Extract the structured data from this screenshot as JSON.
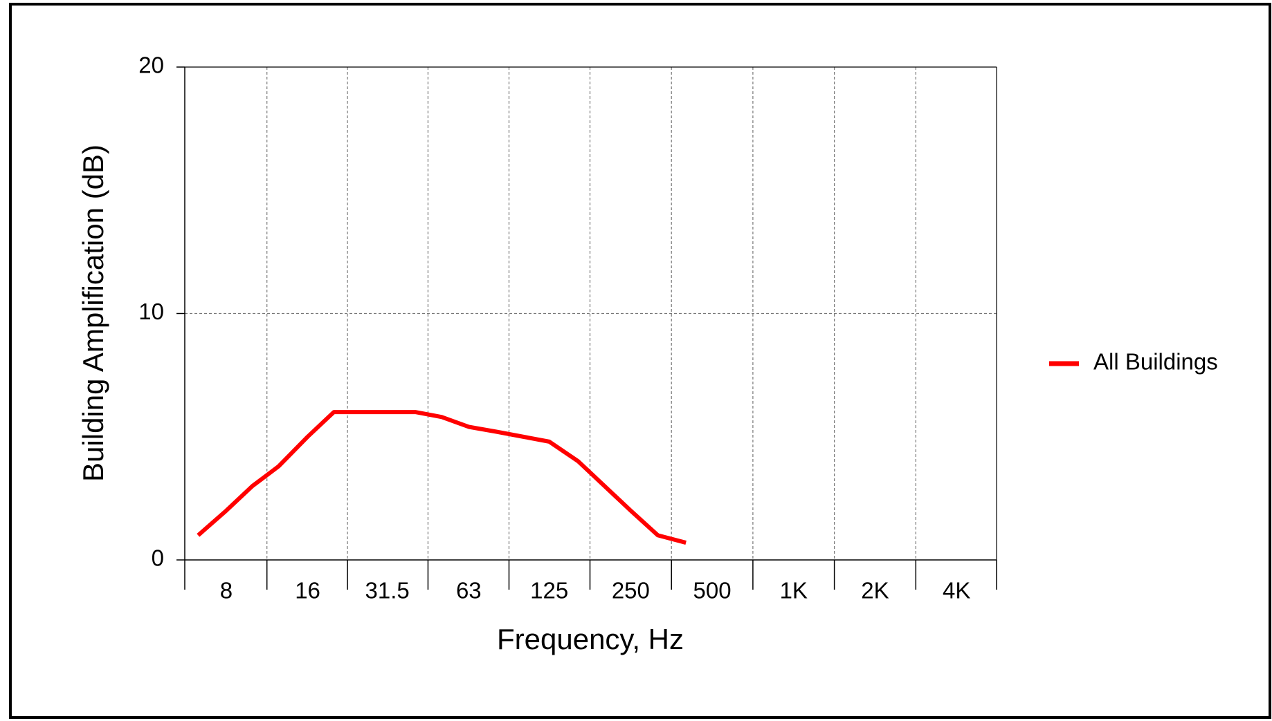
{
  "chart_data": {
    "type": "line",
    "x_label": "Frequency, Hz",
    "y_label": "Building Amplification  (dB)",
    "x": [
      6.3,
      8,
      10,
      12.5,
      16,
      20,
      25,
      31.5,
      40,
      50,
      63,
      80,
      100,
      125,
      160,
      200,
      250,
      315,
      400
    ],
    "series": [
      {
        "name": "All Buildings",
        "color": "#ff0000",
        "values": [
          1.0,
          2.0,
          3.0,
          3.8,
          5.0,
          6.0,
          6.0,
          6.0,
          6.0,
          5.8,
          5.4,
          5.2,
          5.0,
          4.8,
          4.0,
          3.0,
          2.0,
          1.0,
          0.7
        ]
      }
    ],
    "x_scale": "log",
    "xlim": [
      5.623,
      5623
    ],
    "xticks": [
      8,
      16,
      31.5,
      63,
      125,
      250,
      500,
      {
        "value": 1000,
        "label": "1K"
      },
      {
        "value": 2000,
        "label": "2K"
      },
      {
        "value": 4000,
        "label": "4K"
      }
    ],
    "ylim": [
      0,
      20
    ],
    "yticks": [
      0,
      10,
      20
    ],
    "grid": true,
    "legend": "right"
  }
}
